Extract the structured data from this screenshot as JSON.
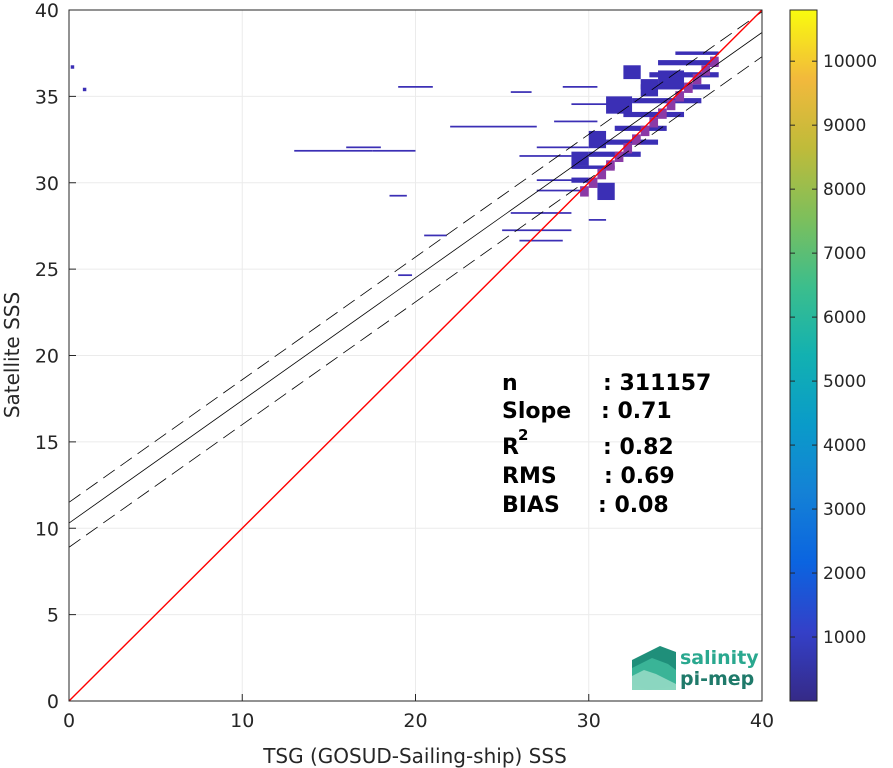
{
  "chart_data": {
    "type": "heatmap",
    "xlabel": "TSG (GOSUD-Sailing-ship) SSS",
    "ylabel": "Satellite SSS",
    "xlim": [
      0,
      40
    ],
    "ylim": [
      0,
      40
    ],
    "xticks": [
      "0",
      "10",
      "20",
      "30",
      "40"
    ],
    "yticks": [
      "0",
      "5",
      "10",
      "15",
      "20",
      "25",
      "30",
      "35",
      "40"
    ],
    "grid": true,
    "colorbar": {
      "colormap": "parula",
      "range": [
        0,
        10800
      ],
      "ticks": [
        "1000",
        "2000",
        "3000",
        "4000",
        "5000",
        "6000",
        "7000",
        "8000",
        "9000",
        "10000"
      ]
    },
    "reference_lines": {
      "identity": {
        "slope": 1,
        "intercept": 0,
        "color": "#ff0000"
      },
      "fit": {
        "slope": 0.71,
        "intercept": 10.3,
        "color": "#000000"
      },
      "fit_bound_upper": {
        "slope": 0.71,
        "intercept": 11.5
      },
      "fit_bound_lower": {
        "slope": 0.71,
        "intercept": 8.9
      }
    },
    "stats": {
      "n_label": "n",
      "n_value": ": 311157",
      "slope_label": "Slope",
      "slope_value": ": 0.71",
      "r2_label": "R",
      "r2_sup": "2",
      "r2_value": ": 0.82",
      "rms_label": "RMS",
      "rms_value": ": 0.69",
      "bias_label": "BIAS",
      "bias_value": ": 0.08"
    },
    "density_cells": [
      [
        0.1,
        36.6,
        0.2,
        0.2
      ],
      [
        0.8,
        35.3,
        0.2,
        0.2
      ],
      [
        19.0,
        35.5,
        2.0,
        0.1
      ],
      [
        25.5,
        35.2,
        1.2,
        0.1
      ],
      [
        13.0,
        31.8,
        4.5,
        0.1
      ],
      [
        16.0,
        32.0,
        2.0,
        0.1
      ],
      [
        17.5,
        31.8,
        2.5,
        0.1
      ],
      [
        18.5,
        29.2,
        1.0,
        0.1
      ],
      [
        20.5,
        26.9,
        1.3,
        0.1
      ],
      [
        19.0,
        24.6,
        0.8,
        0.1
      ],
      [
        22.0,
        33.2,
        5.0,
        0.1
      ],
      [
        25.0,
        27.2,
        4.0,
        0.1
      ],
      [
        26.0,
        26.6,
        2.5,
        0.1
      ],
      [
        25.5,
        28.2,
        3.5,
        0.1
      ],
      [
        27.0,
        29.5,
        2.5,
        0.1
      ],
      [
        27.0,
        30.1,
        3.0,
        0.1
      ],
      [
        26.0,
        31.5,
        3.0,
        0.1
      ],
      [
        27.0,
        32.0,
        3.0,
        0.1
      ],
      [
        28.0,
        33.5,
        2.5,
        0.1
      ],
      [
        29.0,
        34.5,
        3.0,
        0.1
      ],
      [
        28.5,
        35.5,
        2.0,
        0.1
      ],
      [
        29.0,
        30.8,
        2.5,
        0.2
      ],
      [
        30.0,
        31.5,
        3.0,
        0.3
      ],
      [
        31.0,
        32.2,
        3.0,
        0.3
      ],
      [
        31.5,
        33.0,
        3.0,
        0.3
      ],
      [
        32.0,
        33.8,
        3.5,
        0.3
      ],
      [
        32.5,
        34.6,
        4.0,
        0.3
      ],
      [
        33.0,
        35.4,
        4.0,
        0.3
      ],
      [
        33.5,
        36.1,
        4.0,
        0.3
      ],
      [
        34.0,
        36.8,
        3.5,
        0.3
      ],
      [
        35.0,
        37.4,
        2.5,
        0.2
      ],
      [
        33.0,
        35.0,
        1.0,
        1.0
      ],
      [
        34.0,
        35.5,
        1.5,
        1.0
      ],
      [
        31.0,
        34.0,
        1.5,
        1.0
      ],
      [
        30.0,
        32.0,
        1.0,
        1.0
      ],
      [
        29.0,
        31.0,
        1.0,
        0.8
      ],
      [
        32.0,
        36.0,
        1.0,
        0.8
      ],
      [
        29.0,
        30.0,
        1.0,
        0.3
      ],
      [
        30.5,
        29.0,
        1.0,
        1.0
      ],
      [
        30.0,
        27.8,
        1.0,
        0.1
      ]
    ]
  },
  "logo": {
    "line1": "salinity",
    "line2": "pi-mep"
  }
}
